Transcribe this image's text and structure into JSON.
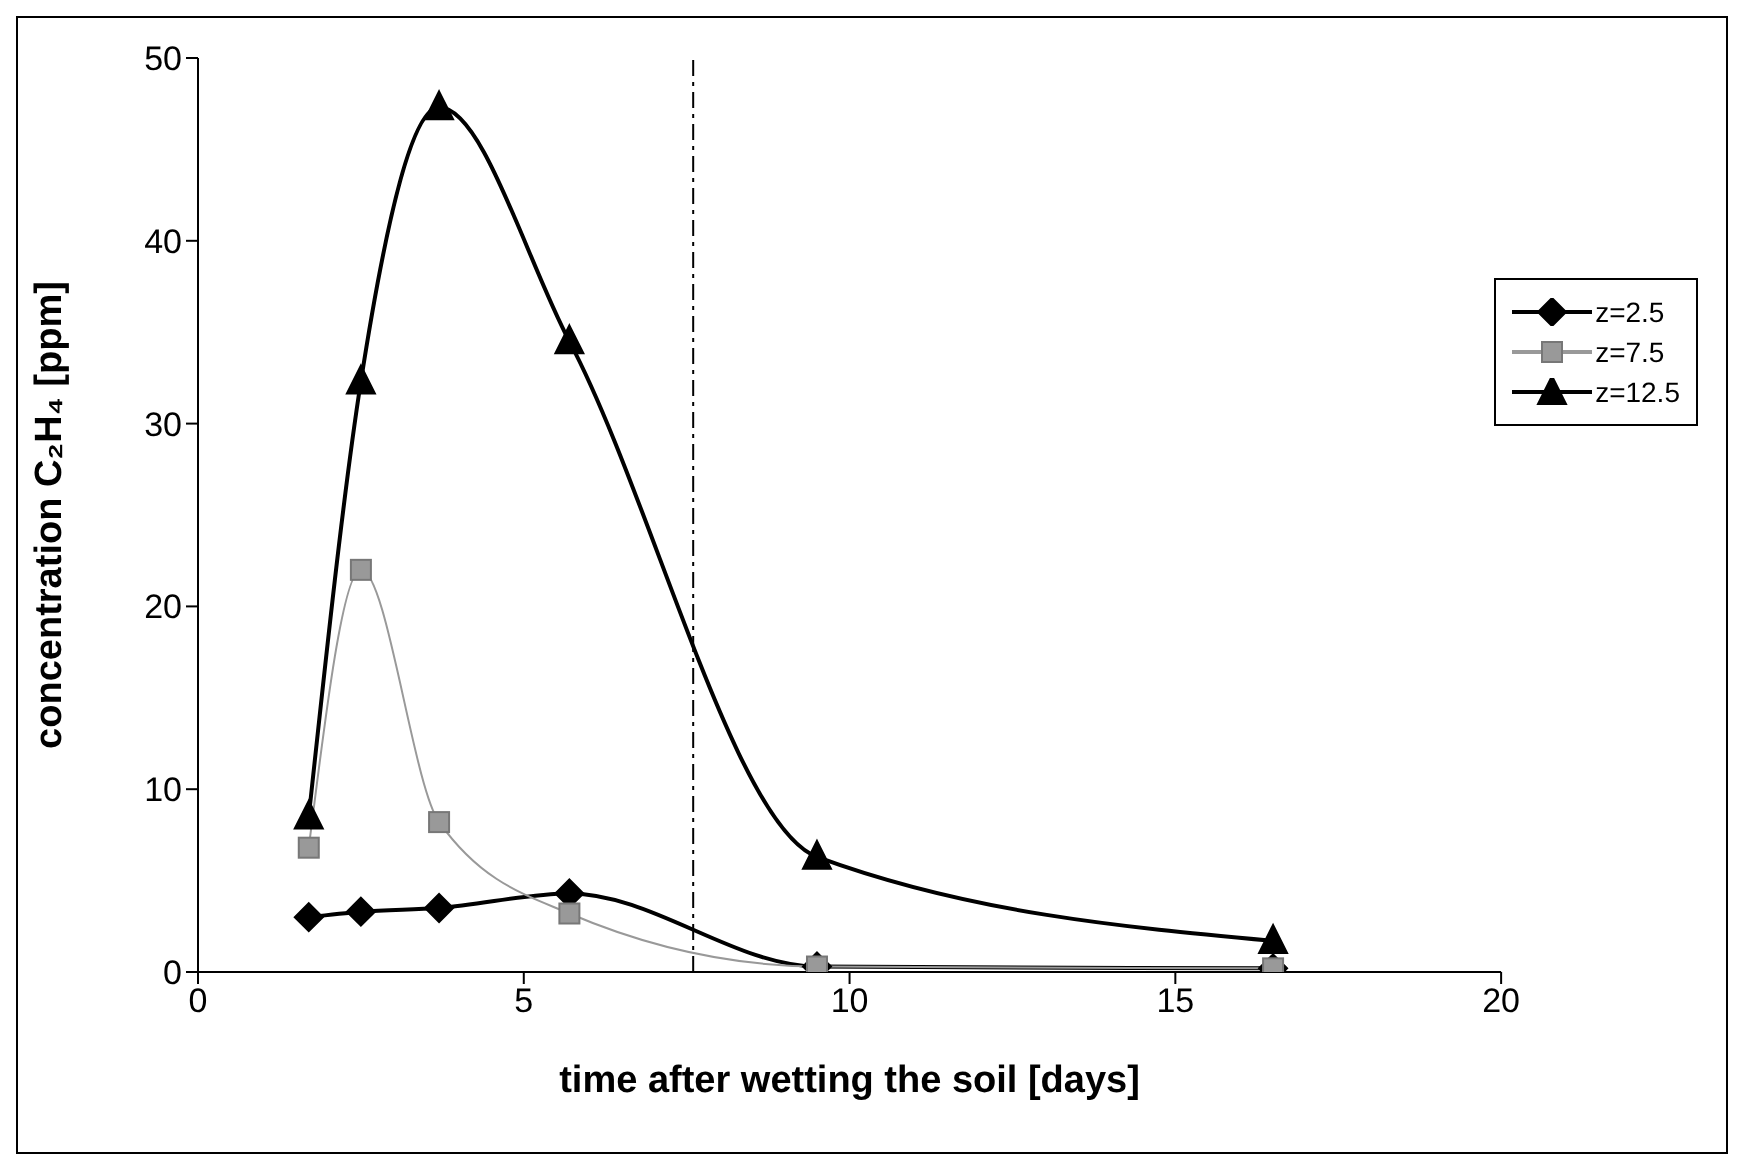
{
  "chart_data": {
    "type": "line",
    "xlabel": "time after wetting the soil [days]",
    "ylabel": "concentration C₂H₄ [ppm]",
    "xlim": [
      0,
      20
    ],
    "xticks": [
      0,
      5,
      10,
      15,
      20
    ],
    "ylim": [
      0,
      50
    ],
    "yticks": [
      0,
      10,
      20,
      30,
      40,
      50
    ],
    "grid": false,
    "legend": "right",
    "series": [
      {
        "name": "z=2.5",
        "color": "#000000",
        "marker": "diamond",
        "x": [
          1.7,
          2.5,
          3.7,
          5.7,
          9.5,
          16.5
        ],
        "values": [
          3,
          3.3,
          3.5,
          4.3,
          0.3,
          0.2
        ]
      },
      {
        "name": "z=7.5",
        "color": "#999999",
        "marker": "square",
        "x": [
          1.7,
          2.5,
          3.7,
          5.7,
          9.5,
          16.5
        ],
        "values": [
          6.8,
          22,
          8.2,
          3.2,
          0.3,
          0.2
        ]
      },
      {
        "name": "z=12.5",
        "color": "#000000",
        "marker": "triangle",
        "x": [
          1.7,
          2.5,
          3.7,
          5.7,
          9.5,
          16.5
        ],
        "values": [
          8.5,
          32.3,
          47.3,
          34.5,
          6.3,
          1.7
        ]
      }
    ],
    "ref_lines": [
      {
        "axis": "x",
        "value": 7.6,
        "color": "#000000",
        "line_style": "dashdot"
      }
    ]
  }
}
